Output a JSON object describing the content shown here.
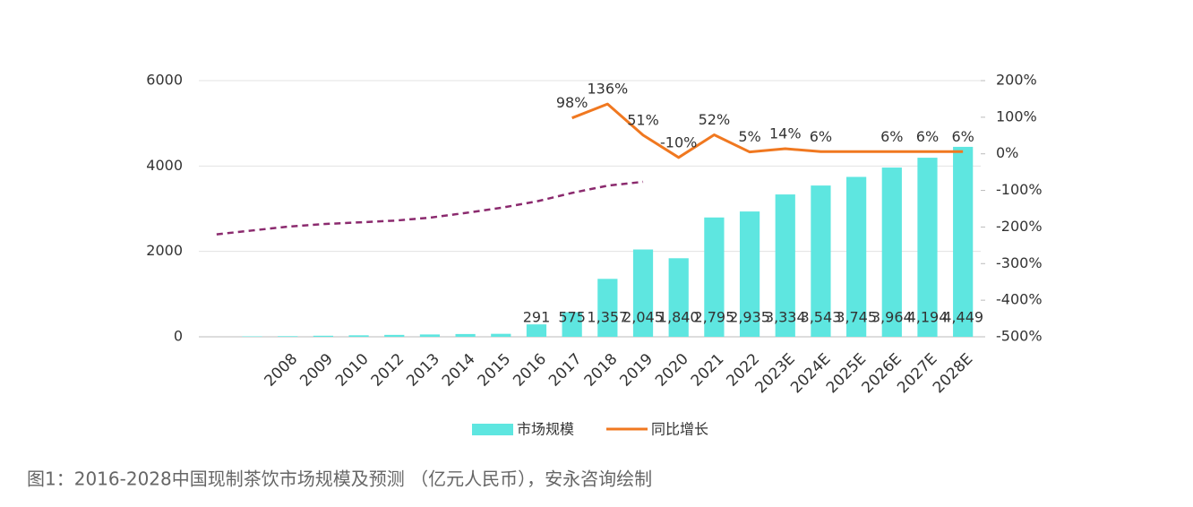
{
  "chart_data": {
    "type": "bar",
    "caption": "图1：2016-2028中国现制茶饮市场规模及预测 （亿元人民币），安永咨询绘制",
    "categories": [
      null,
      null,
      "2008",
      "2009",
      "2010",
      "2012",
      "2013",
      "2014",
      "2015",
      "2016",
      "2017",
      "2018",
      "2019",
      "2020",
      "2021",
      "2022",
      "2023E",
      "2024E",
      "2025E",
      "2026E",
      "2027E",
      "2028E"
    ],
    "series": [
      {
        "name": "市场规模",
        "type": "bar",
        "color": "#5ee6e0",
        "values": [
          null,
          10,
          15,
          25,
          35,
          45,
          55,
          65,
          70,
          291,
          575,
          1357,
          2045,
          1840,
          2795,
          2935,
          3334,
          3543,
          3745,
          3964,
          4194,
          4449
        ],
        "value_labels": [
          null,
          null,
          null,
          null,
          null,
          null,
          null,
          null,
          null,
          "291",
          "575",
          "1,357",
          "2,045",
          "1,840",
          "2,795",
          "2,935",
          "3,334",
          "3,543",
          "3,745",
          "3,964",
          "4,194",
          "4,449"
        ]
      },
      {
        "name": "同比增长",
        "type": "line",
        "axis": "y2",
        "color": "#f07820",
        "values": [
          null,
          null,
          null,
          null,
          null,
          null,
          null,
          null,
          null,
          null,
          98,
          136,
          51,
          -10,
          52,
          5,
          14,
          6,
          6,
          6,
          6,
          6
        ],
        "value_labels": [
          null,
          null,
          null,
          null,
          null,
          null,
          null,
          null,
          null,
          null,
          "98%",
          "136%",
          "51%",
          "-10%",
          "52%",
          "5%",
          "14%",
          "6%",
          null,
          "6%",
          "6%",
          "6%"
        ]
      },
      {
        "type": "line",
        "dashed": true,
        "color": "#8b2a6e",
        "values": [
          2400,
          2490,
          2580,
          2640,
          2680,
          2720,
          2790,
          2900,
          3020,
          3170,
          3370,
          3540,
          3630,
          null,
          null,
          null,
          null,
          null,
          null,
          null,
          null,
          null
        ]
      }
    ],
    "ylim": [
      0,
      6000
    ],
    "yticks": [
      0,
      2000,
      4000,
      6000
    ],
    "y2lim": [
      -500,
      200
    ],
    "y2ticks": [
      {
        "value": -500,
        "label": "-500%"
      },
      {
        "value": -400,
        "label": "-400%"
      },
      {
        "value": -300,
        "label": "-300%"
      },
      {
        "value": -200,
        "label": "-200%"
      },
      {
        "value": -100,
        "label": "-100%"
      },
      {
        "value": 0,
        "label": "0%"
      },
      {
        "value": 100,
        "label": "100%"
      },
      {
        "value": 200,
        "label": "200%"
      }
    ],
    "grid": true,
    "legend": "bottom"
  }
}
